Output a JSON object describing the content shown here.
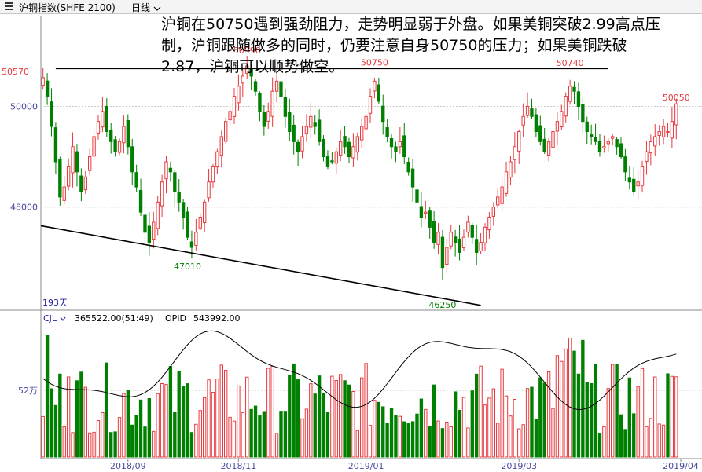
{
  "header": {
    "symbol": "沪铜指数(SHFE 2100)",
    "period": "日线",
    "period_dropdown_icon": "chevron-down-icon",
    "menu_icon": "menu-icon"
  },
  "annotation": "沪铜在50750遇到强劲阻力，走势明显弱于外盘。如果美铜突破2.99高点压制，沪铜跟随做多的同时，仍要注意自身50750的压力；如果美铜跌破2.87，沪铜可以顺势做空。",
  "colors": {
    "up": "#e8383d",
    "down": "#008000",
    "grid": "#c8c8c8",
    "label": "#4a4aa0",
    "ma": "#000000"
  },
  "chart_data": [
    {
      "type": "candlestick",
      "ylabel_ticks": [
        "48000",
        "50000"
      ],
      "ylim": [
        46000,
        51800
      ],
      "period_label": "193天",
      "x_ticks": [
        "2018/09",
        "2018/11",
        "2019/01",
        "2019/03",
        "2019/04"
      ],
      "price_labels": [
        {
          "text": "50570",
          "value": 50570,
          "index": 0
        },
        {
          "text": "50990",
          "value": 50990,
          "index": 48
        },
        {
          "text": "50750",
          "value": 50750,
          "index": 78
        },
        {
          "text": "47010",
          "value": 47010,
          "index": 34
        },
        {
          "text": "46250",
          "value": 46250,
          "index": 94
        },
        {
          "text": "50740",
          "value": 50740,
          "index": 124
        },
        {
          "text": "50050",
          "value": 50050,
          "index": 149
        }
      ],
      "resistance_line": {
        "from": {
          "index": 3,
          "value": 50750
        },
        "to": {
          "index": 133,
          "value": 50750
        }
      },
      "trend_line": {
        "from": {
          "index": 0,
          "value": 47630
        },
        "to": {
          "index": 103,
          "value": 46050
        }
      },
      "closes": [
        50570,
        50200,
        49600,
        48900,
        48200,
        48400,
        48800,
        49200,
        48700,
        48300,
        48600,
        49000,
        49400,
        49700,
        49900,
        49500,
        49300,
        49100,
        49300,
        49600,
        49200,
        48700,
        48400,
        47900,
        47500,
        47300,
        47700,
        48100,
        48500,
        48900,
        48700,
        48300,
        48100,
        47800,
        47400,
        47200,
        47500,
        47800,
        48100,
        48500,
        48800,
        49100,
        49400,
        49700,
        49900,
        50200,
        50400,
        50600,
        50800,
        50600,
        50300,
        49900,
        49600,
        49900,
        50300,
        50500,
        50200,
        49800,
        49500,
        49300,
        49100,
        49400,
        49600,
        49800,
        49600,
        49300,
        49000,
        48800,
        48900,
        49100,
        49300,
        49200,
        49000,
        49200,
        49400,
        49600,
        49800,
        50200,
        50500,
        50100,
        49700,
        49400,
        49200,
        49100,
        49300,
        49000,
        48700,
        48400,
        48100,
        47800,
        47900,
        47600,
        47300,
        47500,
        46800,
        47200,
        47500,
        47300,
        47100,
        47400,
        47700,
        47400,
        47100,
        47300,
        47600,
        47800,
        48000,
        48200,
        48400,
        48700,
        48900,
        49200,
        49500,
        49800,
        50000,
        49800,
        49500,
        49300,
        49100,
        49300,
        49500,
        49700,
        49900,
        50200,
        50400,
        50300,
        50000,
        49700,
        49500,
        49400,
        49300,
        49100,
        49200,
        49300,
        49400,
        49200,
        49000,
        48700,
        48500,
        48300,
        48500,
        48800,
        49100,
        49300,
        49400,
        49500,
        49600,
        49500,
        49700,
        50050
      ]
    },
    {
      "type": "bar",
      "indicator_name": "CJL",
      "indicator_value": "365522.00(51:49)",
      "opid_label": "OPID",
      "opid_value": "543992.00",
      "ylabel_ticks": [
        "52万"
      ],
      "volume_scale": "万"
    }
  ]
}
